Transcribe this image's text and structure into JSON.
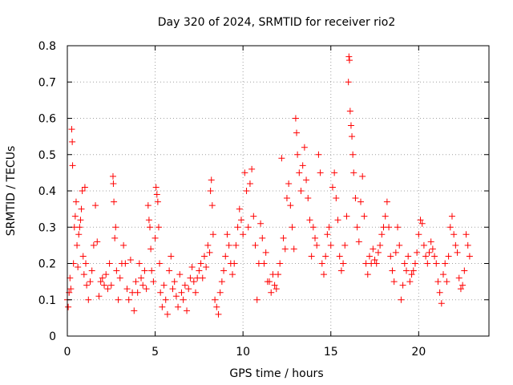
{
  "chart_data": {
    "type": "scatter",
    "title": "Day 320 of 2024, SRMTID for receiver rio2",
    "xlabel": "GPS time / hours",
    "ylabel": "SRMTID / TECUs",
    "xlim": [
      0,
      24.0
    ],
    "ylim": [
      0,
      0.8
    ],
    "xticks": [
      0,
      5,
      10,
      15,
      20
    ],
    "xtick_labels": [
      "0",
      "5",
      "10",
      "15",
      "20"
    ],
    "yticks": [
      0,
      0.1,
      0.2,
      0.3,
      0.4,
      0.5,
      0.6,
      0.7,
      0.8
    ],
    "ytick_labels": [
      "0",
      "0.1",
      "0.2",
      "0.3",
      "0.4",
      "0.5",
      "0.6",
      "0.7",
      "0.8"
    ],
    "grid": true,
    "marker": "+",
    "color": "#ff0000",
    "series": [
      {
        "name": "SRMTID",
        "points": [
          [
            0.0,
            0.1
          ],
          [
            0.05,
            0.08
          ],
          [
            0.1,
            0.12
          ],
          [
            0.15,
            0.16
          ],
          [
            0.2,
            0.13
          ],
          [
            0.25,
            0.57
          ],
          [
            0.28,
            0.535
          ],
          [
            0.3,
            0.47
          ],
          [
            0.35,
            0.2
          ],
          [
            0.4,
            0.3
          ],
          [
            0.45,
            0.33
          ],
          [
            0.5,
            0.37
          ],
          [
            0.55,
            0.25
          ],
          [
            0.6,
            0.19
          ],
          [
            0.65,
            0.28
          ],
          [
            0.7,
            0.3
          ],
          [
            0.75,
            0.32
          ],
          [
            0.8,
            0.35
          ],
          [
            0.85,
            0.4
          ],
          [
            0.9,
            0.22
          ],
          [
            0.95,
            0.17
          ],
          [
            1.0,
            0.41
          ],
          [
            1.05,
            0.2
          ],
          [
            1.1,
            0.14
          ],
          [
            1.2,
            0.1
          ],
          [
            1.3,
            0.15
          ],
          [
            1.4,
            0.18
          ],
          [
            1.5,
            0.25
          ],
          [
            1.6,
            0.36
          ],
          [
            1.7,
            0.26
          ],
          [
            1.8,
            0.11
          ],
          [
            1.9,
            0.15
          ],
          [
            2.0,
            0.16
          ],
          [
            2.1,
            0.14
          ],
          [
            2.2,
            0.17
          ],
          [
            2.3,
            0.13
          ],
          [
            2.4,
            0.2
          ],
          [
            2.5,
            0.14
          ],
          [
            2.6,
            0.44
          ],
          [
            2.62,
            0.42
          ],
          [
            2.65,
            0.37
          ],
          [
            2.7,
            0.27
          ],
          [
            2.75,
            0.3
          ],
          [
            2.8,
            0.18
          ],
          [
            2.9,
            0.1
          ],
          [
            3.0,
            0.16
          ],
          [
            3.1,
            0.2
          ],
          [
            3.2,
            0.25
          ],
          [
            3.3,
            0.2
          ],
          [
            3.4,
            0.13
          ],
          [
            3.5,
            0.1
          ],
          [
            3.6,
            0.21
          ],
          [
            3.7,
            0.12
          ],
          [
            3.8,
            0.07
          ],
          [
            3.9,
            0.15
          ],
          [
            4.0,
            0.12
          ],
          [
            4.1,
            0.2
          ],
          [
            4.2,
            0.16
          ],
          [
            4.3,
            0.14
          ],
          [
            4.4,
            0.18
          ],
          [
            4.5,
            0.13
          ],
          [
            4.6,
            0.36
          ],
          [
            4.65,
            0.32
          ],
          [
            4.7,
            0.3
          ],
          [
            4.75,
            0.24
          ],
          [
            4.8,
            0.18
          ],
          [
            4.9,
            0.15
          ],
          [
            5.0,
            0.27
          ],
          [
            5.05,
            0.41
          ],
          [
            5.1,
            0.39
          ],
          [
            5.15,
            0.37
          ],
          [
            5.2,
            0.3
          ],
          [
            5.25,
            0.2
          ],
          [
            5.3,
            0.12
          ],
          [
            5.4,
            0.08
          ],
          [
            5.5,
            0.14
          ],
          [
            5.6,
            0.1
          ],
          [
            5.7,
            0.06
          ],
          [
            5.8,
            0.18
          ],
          [
            5.9,
            0.22
          ],
          [
            6.0,
            0.13
          ],
          [
            6.1,
            0.15
          ],
          [
            6.2,
            0.11
          ],
          [
            6.3,
            0.08
          ],
          [
            6.4,
            0.17
          ],
          [
            6.5,
            0.12
          ],
          [
            6.6,
            0.1
          ],
          [
            6.7,
            0.14
          ],
          [
            6.8,
            0.07
          ],
          [
            6.9,
            0.13
          ],
          [
            7.0,
            0.16
          ],
          [
            7.1,
            0.19
          ],
          [
            7.2,
            0.15
          ],
          [
            7.3,
            0.12
          ],
          [
            7.4,
            0.16
          ],
          [
            7.5,
            0.18
          ],
          [
            7.6,
            0.2
          ],
          [
            7.7,
            0.16
          ],
          [
            7.8,
            0.22
          ],
          [
            7.9,
            0.19
          ],
          [
            8.0,
            0.25
          ],
          [
            8.1,
            0.23
          ],
          [
            8.15,
            0.4
          ],
          [
            8.2,
            0.43
          ],
          [
            8.25,
            0.36
          ],
          [
            8.3,
            0.28
          ],
          [
            8.4,
            0.1
          ],
          [
            8.5,
            0.08
          ],
          [
            8.6,
            0.06
          ],
          [
            8.7,
            0.12
          ],
          [
            8.8,
            0.15
          ],
          [
            8.9,
            0.18
          ],
          [
            9.0,
            0.22
          ],
          [
            9.1,
            0.28
          ],
          [
            9.2,
            0.25
          ],
          [
            9.3,
            0.2
          ],
          [
            9.4,
            0.17
          ],
          [
            9.5,
            0.2
          ],
          [
            9.6,
            0.25
          ],
          [
            9.7,
            0.3
          ],
          [
            9.8,
            0.35
          ],
          [
            9.9,
            0.32
          ],
          [
            10.0,
            0.28
          ],
          [
            10.1,
            0.45
          ],
          [
            10.2,
            0.4
          ],
          [
            10.3,
            0.3
          ],
          [
            10.4,
            0.42
          ],
          [
            10.5,
            0.46
          ],
          [
            10.6,
            0.33
          ],
          [
            10.7,
            0.25
          ],
          [
            10.8,
            0.1
          ],
          [
            10.9,
            0.2
          ],
          [
            11.0,
            0.31
          ],
          [
            11.1,
            0.27
          ],
          [
            11.2,
            0.2
          ],
          [
            11.3,
            0.23
          ],
          [
            11.4,
            0.15
          ],
          [
            11.5,
            0.15
          ],
          [
            11.6,
            0.12
          ],
          [
            11.7,
            0.17
          ],
          [
            11.8,
            0.14
          ],
          [
            11.9,
            0.13
          ],
          [
            12.0,
            0.17
          ],
          [
            12.1,
            0.2
          ],
          [
            12.2,
            0.49
          ],
          [
            12.3,
            0.27
          ],
          [
            12.4,
            0.24
          ],
          [
            12.5,
            0.38
          ],
          [
            12.6,
            0.42
          ],
          [
            12.7,
            0.36
          ],
          [
            12.8,
            0.3
          ],
          [
            12.9,
            0.24
          ],
          [
            13.0,
            0.6
          ],
          [
            13.05,
            0.56
          ],
          [
            13.1,
            0.5
          ],
          [
            13.2,
            0.45
          ],
          [
            13.3,
            0.4
          ],
          [
            13.4,
            0.47
          ],
          [
            13.5,
            0.52
          ],
          [
            13.6,
            0.43
          ],
          [
            13.7,
            0.38
          ],
          [
            13.8,
            0.32
          ],
          [
            13.9,
            0.22
          ],
          [
            14.0,
            0.3
          ],
          [
            14.1,
            0.27
          ],
          [
            14.2,
            0.25
          ],
          [
            14.3,
            0.5
          ],
          [
            14.4,
            0.45
          ],
          [
            14.5,
            0.2
          ],
          [
            14.6,
            0.17
          ],
          [
            14.7,
            0.22
          ],
          [
            14.8,
            0.28
          ],
          [
            14.9,
            0.3
          ],
          [
            15.0,
            0.25
          ],
          [
            15.1,
            0.41
          ],
          [
            15.2,
            0.45
          ],
          [
            15.3,
            0.38
          ],
          [
            15.4,
            0.32
          ],
          [
            15.5,
            0.22
          ],
          [
            15.6,
            0.18
          ],
          [
            15.7,
            0.2
          ],
          [
            15.8,
            0.25
          ],
          [
            15.9,
            0.33
          ],
          [
            16.0,
            0.7
          ],
          [
            16.03,
            0.77
          ],
          [
            16.06,
            0.76
          ],
          [
            16.1,
            0.62
          ],
          [
            16.15,
            0.58
          ],
          [
            16.2,
            0.55
          ],
          [
            16.25,
            0.5
          ],
          [
            16.3,
            0.45
          ],
          [
            16.4,
            0.38
          ],
          [
            16.5,
            0.3
          ],
          [
            16.6,
            0.26
          ],
          [
            16.7,
            0.37
          ],
          [
            16.8,
            0.44
          ],
          [
            16.9,
            0.33
          ],
          [
            17.0,
            0.2
          ],
          [
            17.1,
            0.17
          ],
          [
            17.2,
            0.22
          ],
          [
            17.3,
            0.2
          ],
          [
            17.4,
            0.24
          ],
          [
            17.5,
            0.21
          ],
          [
            17.6,
            0.2
          ],
          [
            17.7,
            0.23
          ],
          [
            17.8,
            0.25
          ],
          [
            17.9,
            0.28
          ],
          [
            18.0,
            0.3
          ],
          [
            18.1,
            0.33
          ],
          [
            18.2,
            0.37
          ],
          [
            18.3,
            0.3
          ],
          [
            18.4,
            0.22
          ],
          [
            18.5,
            0.18
          ],
          [
            18.6,
            0.15
          ],
          [
            18.7,
            0.23
          ],
          [
            18.8,
            0.3
          ],
          [
            18.9,
            0.25
          ],
          [
            19.0,
            0.1
          ],
          [
            19.1,
            0.14
          ],
          [
            19.2,
            0.2
          ],
          [
            19.3,
            0.18
          ],
          [
            19.4,
            0.22
          ],
          [
            19.5,
            0.15
          ],
          [
            19.6,
            0.17
          ],
          [
            19.7,
            0.18
          ],
          [
            19.8,
            0.2
          ],
          [
            19.9,
            0.23
          ],
          [
            20.0,
            0.28
          ],
          [
            20.1,
            0.32
          ],
          [
            20.2,
            0.31
          ],
          [
            20.3,
            0.25
          ],
          [
            20.4,
            0.22
          ],
          [
            20.5,
            0.2
          ],
          [
            20.6,
            0.23
          ],
          [
            20.7,
            0.26
          ],
          [
            20.8,
            0.24
          ],
          [
            20.9,
            0.22
          ],
          [
            21.0,
            0.2
          ],
          [
            21.1,
            0.15
          ],
          [
            21.2,
            0.12
          ],
          [
            21.3,
            0.09
          ],
          [
            21.4,
            0.17
          ],
          [
            21.5,
            0.2
          ],
          [
            21.6,
            0.15
          ],
          [
            21.7,
            0.22
          ],
          [
            21.8,
            0.3
          ],
          [
            21.9,
            0.33
          ],
          [
            22.0,
            0.28
          ],
          [
            22.1,
            0.25
          ],
          [
            22.2,
            0.23
          ],
          [
            22.3,
            0.16
          ],
          [
            22.4,
            0.13
          ],
          [
            22.5,
            0.14
          ],
          [
            22.6,
            0.18
          ],
          [
            22.7,
            0.28
          ],
          [
            22.8,
            0.25
          ],
          [
            22.9,
            0.22
          ]
        ]
      }
    ]
  }
}
